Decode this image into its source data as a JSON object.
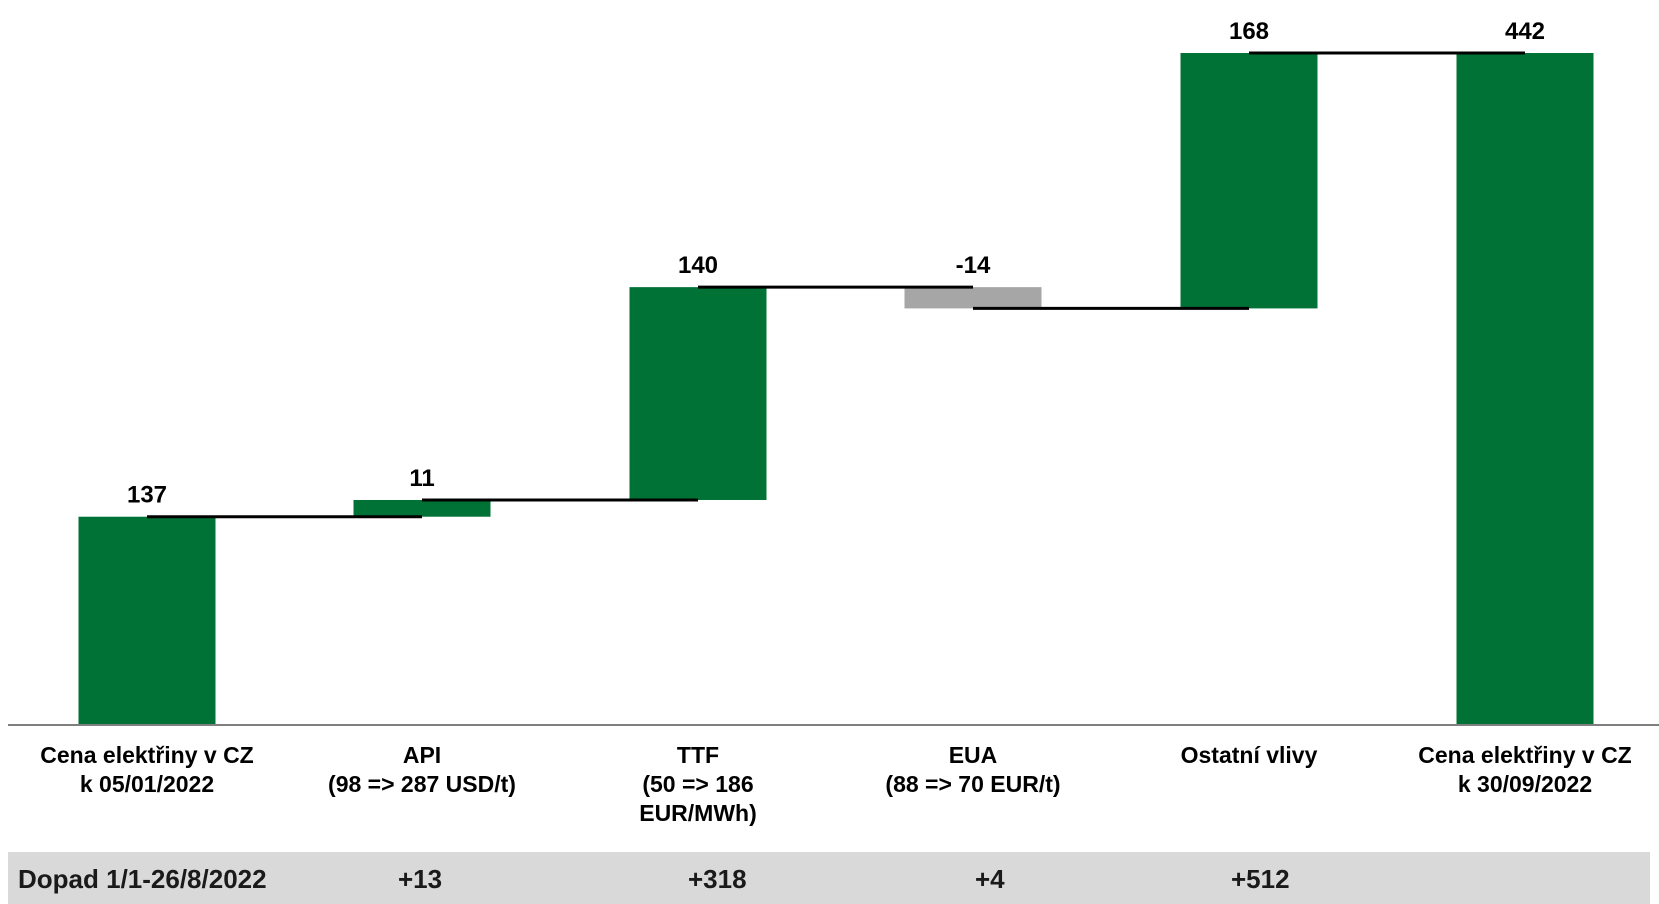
{
  "chart_data": {
    "type": "waterfall",
    "categories": [
      [
        "Cena elektřiny v CZ",
        "k 05/01/2022"
      ],
      [
        "API",
        "(98 => 287 USD/t)"
      ],
      [
        "TTF",
        "(50 => 186",
        "EUR/MWh)"
      ],
      [
        "EUA",
        "(88 => 70 EUR/t)"
      ],
      [
        "Ostatní vlivy"
      ],
      [
        "Cena elektřiny v CZ",
        "k 30/09/2022"
      ]
    ],
    "steps": [
      {
        "kind": "total",
        "value": 137,
        "label": "137"
      },
      {
        "kind": "delta",
        "value": 11,
        "label": "11"
      },
      {
        "kind": "delta",
        "value": 140,
        "label": "140"
      },
      {
        "kind": "delta",
        "value": -14,
        "label": "-14"
      },
      {
        "kind": "delta",
        "value": 168,
        "label": "168"
      },
      {
        "kind": "total",
        "value": 442,
        "label": "442"
      }
    ],
    "colors": {
      "increase": "#007236",
      "decrease": "#a6a6a6",
      "total": "#007236",
      "connector": "#000000",
      "axis": "#7f7f7f"
    },
    "ylim": [
      0,
      442
    ],
    "grid": false,
    "legend": "none"
  },
  "impact_row": {
    "label": "Dopad 1/1-26/8/2022",
    "values": [
      "+13",
      "+318",
      "+4",
      "+512",
      ""
    ],
    "background": "#d9d9d9"
  }
}
